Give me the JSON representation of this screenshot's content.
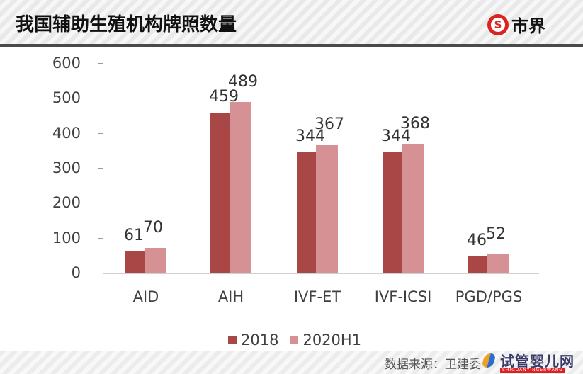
{
  "header": {
    "title": "我国辅助生殖机构牌照数量",
    "brand": {
      "icon": "brand-s-logo-icon",
      "glyph": "S",
      "name": "市界"
    }
  },
  "chart_data": {
    "type": "bar",
    "title": "我国辅助生殖机构牌照数量",
    "categories": [
      "AID",
      "AIH",
      "IVF-ET",
      "IVF-ICSI",
      "PGD/PGS"
    ],
    "series": [
      {
        "name": "2018",
        "color": "#a94646",
        "values": [
          61,
          459,
          344,
          344,
          46
        ]
      },
      {
        "name": "2020H1",
        "color": "#d59193",
        "values": [
          70,
          489,
          367,
          368,
          52
        ]
      }
    ],
    "xlabel": "",
    "ylabel": "",
    "ylim": [
      0,
      600
    ],
    "yticks": [
      0,
      100,
      200,
      300,
      400,
      500,
      600
    ],
    "grid": false,
    "legend_position": "bottom",
    "data_labels": true
  },
  "axis": {
    "yticks": [
      "0",
      "100",
      "200",
      "300",
      "400",
      "500",
      "600"
    ]
  },
  "categories_display": [
    "AID",
    "AIH",
    "IVF-ET",
    "IVF-ICSI",
    "PGD/PGS"
  ],
  "labels": {
    "s0": [
      "61",
      "459",
      "344",
      "344",
      "46"
    ],
    "s1": [
      "70",
      "489",
      "367",
      "368",
      "52"
    ]
  },
  "legend": [
    {
      "label": "2018",
      "color": "#a94646"
    },
    {
      "label": "2020H1",
      "color": "#d59193"
    }
  ],
  "footer": {
    "source": "数据来源：卫建委",
    "watermark": "试管婴儿网",
    "watermark_sub": "SHIGUANYINGERWANG"
  }
}
